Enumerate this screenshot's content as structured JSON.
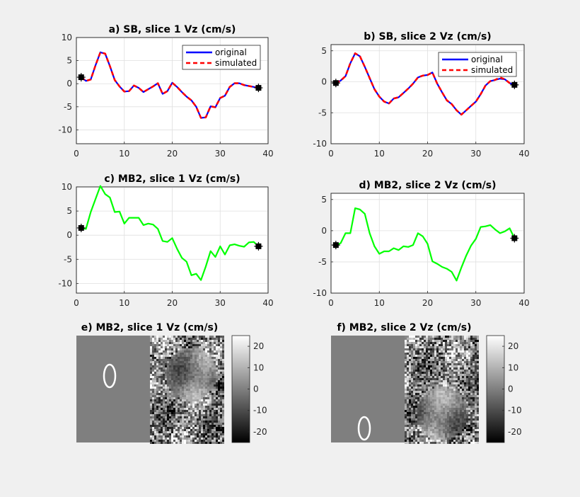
{
  "chart_data": [
    {
      "panel": "a",
      "type": "line",
      "title": "a) SB, slice 1 Vz (cm/s)",
      "xlim": [
        0,
        40
      ],
      "ylim": [
        -13,
        10
      ],
      "xticks": [
        0,
        10,
        20,
        30,
        40
      ],
      "yticks": [
        10,
        5,
        0,
        -5,
        -10
      ],
      "xtick_labels": [
        "0",
        "10",
        "20",
        "30",
        "40"
      ],
      "ytick_labels": [
        "10",
        "5",
        "0",
        "-5",
        "-10"
      ],
      "grid": true,
      "legend": {
        "location": "top-right",
        "entries": [
          "original",
          "simulated"
        ]
      },
      "x": [
        1,
        2,
        3,
        4,
        5,
        6,
        7,
        8,
        9,
        10,
        11,
        12,
        13,
        14,
        15,
        16,
        17,
        18,
        19,
        20,
        21,
        22,
        23,
        24,
        25,
        26,
        27,
        28,
        29,
        30,
        31,
        32,
        33,
        34,
        35,
        36,
        37,
        38
      ],
      "series": [
        {
          "name": "original",
          "color": "#0000ff",
          "style": "solid",
          "values": [
            1.4,
            0.6,
            0.9,
            4.0,
            6.8,
            6.5,
            3.8,
            0.8,
            -0.6,
            -1.7,
            -1.6,
            -0.4,
            -0.9,
            -1.8,
            -1.2,
            -0.6,
            0.1,
            -2.2,
            -1.6,
            0.2,
            -0.7,
            -1.8,
            -2.8,
            -3.6,
            -5.0,
            -7.4,
            -7.3,
            -4.9,
            -5.1,
            -3.1,
            -2.6,
            -0.7,
            0.1,
            0.1,
            -0.3,
            -0.5,
            -0.7,
            -0.9
          ]
        },
        {
          "name": "simulated",
          "color": "#ff0000",
          "style": "dashed",
          "values": [
            1.4,
            0.6,
            0.9,
            4.0,
            6.8,
            6.5,
            3.8,
            0.8,
            -0.6,
            -1.7,
            -1.6,
            -0.4,
            -0.9,
            -1.8,
            -1.2,
            -0.6,
            0.1,
            -2.2,
            -1.6,
            0.2,
            -0.7,
            -1.8,
            -2.8,
            -3.6,
            -5.0,
            -7.4,
            -7.3,
            -4.9,
            -5.1,
            -3.1,
            -2.6,
            -0.7,
            0.1,
            0.1,
            -0.3,
            -0.5,
            -0.7,
            -0.9
          ]
        }
      ],
      "markers": [
        {
          "x": 1,
          "y": 1.4
        },
        {
          "x": 38,
          "y": -0.9
        }
      ]
    },
    {
      "panel": "b",
      "type": "line",
      "title": "b) SB, slice 2 Vz (cm/s)",
      "xlim": [
        0,
        40
      ],
      "ylim": [
        -10,
        6
      ],
      "xticks": [
        0,
        10,
        20,
        30,
        40
      ],
      "yticks": [
        5,
        0,
        -5,
        -10
      ],
      "xtick_labels": [
        "0",
        "10",
        "20",
        "30",
        "40"
      ],
      "ytick_labels": [
        "5",
        "0",
        "-5",
        "-10"
      ],
      "grid": true,
      "legend": {
        "location": "top-right",
        "entries": [
          "original",
          "simulated"
        ]
      },
      "x": [
        1,
        2,
        3,
        4,
        5,
        6,
        7,
        8,
        9,
        10,
        11,
        12,
        13,
        14,
        15,
        16,
        17,
        18,
        19,
        20,
        21,
        22,
        23,
        24,
        25,
        26,
        27,
        28,
        29,
        30,
        31,
        32,
        33,
        34,
        35,
        36,
        37,
        38
      ],
      "series": [
        {
          "name": "original",
          "color": "#0000ff",
          "style": "solid",
          "values": [
            -0.2,
            0.2,
            0.9,
            3.0,
            4.6,
            4.1,
            2.4,
            0.6,
            -1.2,
            -2.4,
            -3.2,
            -3.5,
            -2.7,
            -2.5,
            -1.8,
            -1.1,
            -0.3,
            0.7,
            1.0,
            1.1,
            1.5,
            -0.3,
            -1.7,
            -3.0,
            -3.6,
            -4.6,
            -5.3,
            -4.6,
            -3.9,
            -3.2,
            -2.0,
            -0.6,
            0.1,
            0.3,
            0.5,
            0.4,
            -0.2,
            -0.5
          ]
        },
        {
          "name": "simulated",
          "color": "#ff0000",
          "style": "dashed",
          "values": [
            -0.2,
            0.2,
            0.9,
            3.0,
            4.6,
            4.1,
            2.4,
            0.6,
            -1.2,
            -2.4,
            -3.2,
            -3.5,
            -2.7,
            -2.5,
            -1.8,
            -1.1,
            -0.3,
            0.7,
            1.0,
            1.1,
            1.5,
            -0.3,
            -1.7,
            -3.0,
            -3.6,
            -4.6,
            -5.3,
            -4.6,
            -3.9,
            -3.2,
            -2.0,
            -0.6,
            0.1,
            0.3,
            0.7,
            0.4,
            -0.2,
            -0.5
          ]
        }
      ],
      "markers": [
        {
          "x": 1,
          "y": -0.2
        },
        {
          "x": 38,
          "y": -0.5
        }
      ]
    },
    {
      "panel": "c",
      "type": "line",
      "title": "c) MB2, slice 1 Vz (cm/s)",
      "xlim": [
        0,
        40
      ],
      "ylim": [
        -12,
        10
      ],
      "xticks": [
        0,
        10,
        20,
        30,
        40
      ],
      "yticks": [
        10,
        5,
        0,
        -5,
        -10
      ],
      "xtick_labels": [
        "0",
        "10",
        "20",
        "30",
        "40"
      ],
      "ytick_labels": [
        "10",
        "5",
        "0",
        "-5",
        "-10"
      ],
      "grid": true,
      "x": [
        1,
        2,
        3,
        4,
        5,
        6,
        7,
        8,
        9,
        10,
        11,
        12,
        13,
        14,
        15,
        16,
        17,
        18,
        19,
        20,
        21,
        22,
        23,
        24,
        25,
        26,
        27,
        28,
        29,
        30,
        31,
        32,
        33,
        34,
        35,
        36,
        37,
        38
      ],
      "series": [
        {
          "name": "MB2",
          "color": "#00ff00",
          "style": "solid",
          "values": [
            1.5,
            1.3,
            4.8,
            7.5,
            10.2,
            8.5,
            7.8,
            4.8,
            4.9,
            2.4,
            3.6,
            3.6,
            3.6,
            2.1,
            2.4,
            2.2,
            1.3,
            -1.2,
            -1.4,
            -0.6,
            -2.8,
            -4.7,
            -5.5,
            -8.3,
            -8.0,
            -9.3,
            -6.5,
            -3.3,
            -4.5,
            -2.3,
            -4.0,
            -2.1,
            -1.9,
            -2.2,
            -2.4,
            -1.5,
            -1.4,
            -2.3
          ]
        }
      ],
      "markers": [
        {
          "x": 1,
          "y": 1.5
        },
        {
          "x": 38,
          "y": -2.3
        }
      ]
    },
    {
      "panel": "d",
      "type": "line",
      "title": "d) MB2, slice 2 Vz (cm/s)",
      "xlim": [
        0,
        40
      ],
      "ylim": [
        -10,
        6
      ],
      "xticks": [
        0,
        10,
        20,
        30,
        40
      ],
      "yticks": [
        5,
        0,
        -5,
        -10
      ],
      "xtick_labels": [
        "0",
        "10",
        "20",
        "30",
        "40"
      ],
      "ytick_labels": [
        "5",
        "0",
        "-5",
        "-10"
      ],
      "grid": true,
      "x": [
        1,
        2,
        3,
        4,
        5,
        6,
        7,
        8,
        9,
        10,
        11,
        12,
        13,
        14,
        15,
        16,
        17,
        18,
        19,
        20,
        21,
        22,
        23,
        24,
        25,
        26,
        27,
        28,
        29,
        30,
        31,
        32,
        33,
        34,
        35,
        36,
        37,
        38
      ],
      "series": [
        {
          "name": "MB2",
          "color": "#00ff00",
          "style": "solid",
          "values": [
            -2.3,
            -2.0,
            -0.4,
            -0.4,
            3.6,
            3.4,
            2.7,
            -0.4,
            -2.5,
            -3.7,
            -3.3,
            -3.3,
            -2.8,
            -3.1,
            -2.5,
            -2.6,
            -2.3,
            -0.4,
            -0.9,
            -2.1,
            -4.9,
            -5.3,
            -5.8,
            -6.1,
            -6.6,
            -8.0,
            -5.9,
            -4.0,
            -2.4,
            -1.3,
            0.6,
            0.7,
            0.9,
            0.2,
            -0.4,
            -0.1,
            0.4,
            -1.2
          ]
        }
      ],
      "markers": [
        {
          "x": 1,
          "y": -2.3
        },
        {
          "x": 38,
          "y": -1.2
        }
      ]
    },
    {
      "panel": "e",
      "type": "heatmap",
      "title": "e) MB2, slice 1 Vz (cm/s)",
      "colormap": "gray",
      "clim": [
        -25,
        25
      ],
      "colorbar_ticks": [
        20,
        10,
        0,
        -10,
        -20
      ],
      "colorbar_tick_labels": [
        "20",
        "10",
        "0",
        "-10",
        "-20"
      ],
      "annotation": "white ellipse outline in left half"
    },
    {
      "panel": "f",
      "type": "heatmap",
      "title": "f) MB2, slice 2 Vz (cm/s)",
      "colormap": "gray",
      "clim": [
        -25,
        25
      ],
      "colorbar_ticks": [
        20,
        10,
        0,
        -10,
        -20
      ],
      "colorbar_tick_labels": [
        "20",
        "10",
        "0",
        "-10",
        "-20"
      ],
      "annotation": "white ellipse outline in left half"
    }
  ]
}
